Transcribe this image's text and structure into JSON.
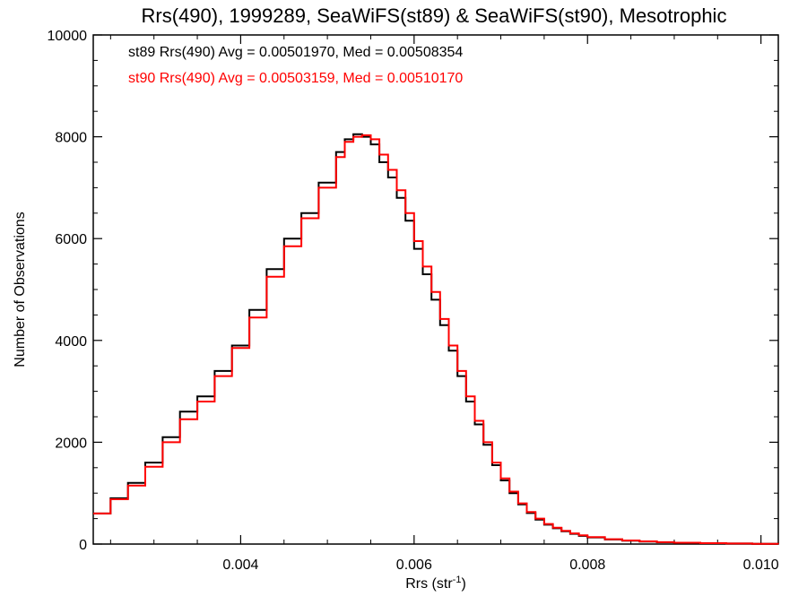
{
  "chart_data": {
    "type": "line",
    "style": "step-histogram",
    "title": "Rrs(490), 1999289, SeaWiFS(st89) & SeaWiFS(st90), Mesotrophic",
    "xlabel_main": "Rrs (str",
    "xlabel_sup": "-1",
    "xlabel_close": ")",
    "ylabel": "Number of Observations",
    "xlim": [
      0.0023,
      0.0102
    ],
    "ylim": [
      0,
      10000
    ],
    "grid": false,
    "x_ticks": [
      {
        "value": 0.004,
        "label": "0.004"
      },
      {
        "value": 0.006,
        "label": "0.006"
      },
      {
        "value": 0.008,
        "label": "0.008"
      },
      {
        "value": 0.01,
        "label": "0.010"
      }
    ],
    "y_ticks": [
      {
        "value": 0,
        "label": "0"
      },
      {
        "value": 2000,
        "label": "2000"
      },
      {
        "value": 4000,
        "label": "4000"
      },
      {
        "value": 6000,
        "label": "6000"
      },
      {
        "value": 8000,
        "label": "8000"
      },
      {
        "value": 10000,
        "label": "10000"
      }
    ],
    "annotations": [
      {
        "text": "st89 Rrs(490) Avg = 0.00501970, Med = 0.00508354",
        "color": "#000000"
      },
      {
        "text": "st90 Rrs(490) Avg = 0.00503159, Med = 0.00510170",
        "color": "#ff0000"
      }
    ],
    "series": [
      {
        "color": "#000000",
        "x": [
          0.0023,
          0.0025,
          0.0027,
          0.0029,
          0.0031,
          0.0033,
          0.0035,
          0.0037,
          0.0039,
          0.0041,
          0.0043,
          0.0045,
          0.0047,
          0.0049,
          0.0051,
          0.0052,
          0.0053,
          0.0054,
          0.0055,
          0.0056,
          0.0057,
          0.0058,
          0.0059,
          0.006,
          0.0061,
          0.0062,
          0.0063,
          0.0064,
          0.0065,
          0.0066,
          0.0067,
          0.0068,
          0.0069,
          0.007,
          0.0071,
          0.0072,
          0.0073,
          0.0074,
          0.0075,
          0.0076,
          0.0077,
          0.0078,
          0.0079,
          0.008,
          0.0082,
          0.0084,
          0.0086,
          0.0088,
          0.009,
          0.0093,
          0.0096,
          0.0099,
          0.0102
        ],
        "y": [
          600,
          900,
          1200,
          1600,
          2100,
          2600,
          2900,
          3400,
          3900,
          4600,
          5400,
          6000,
          6500,
          7100,
          7700,
          7950,
          8050,
          8000,
          7850,
          7500,
          7200,
          6800,
          6350,
          5800,
          5300,
          4800,
          4300,
          3800,
          3300,
          2800,
          2350,
          1950,
          1550,
          1250,
          1000,
          780,
          610,
          480,
          380,
          310,
          250,
          200,
          160,
          130,
          90,
          65,
          50,
          35,
          25,
          15,
          10,
          5,
          3
        ]
      },
      {
        "color": "#ff0000",
        "x": [
          0.0023,
          0.0025,
          0.0027,
          0.0029,
          0.0031,
          0.0033,
          0.0035,
          0.0037,
          0.0039,
          0.0041,
          0.0043,
          0.0045,
          0.0047,
          0.0049,
          0.0051,
          0.0052,
          0.0053,
          0.0054,
          0.0055,
          0.0056,
          0.0057,
          0.0058,
          0.0059,
          0.006,
          0.0061,
          0.0062,
          0.0063,
          0.0064,
          0.0065,
          0.0066,
          0.0067,
          0.0068,
          0.0069,
          0.007,
          0.0071,
          0.0072,
          0.0073,
          0.0074,
          0.0075,
          0.0076,
          0.0077,
          0.0078,
          0.0079,
          0.008,
          0.0082,
          0.0084,
          0.0086,
          0.0088,
          0.009,
          0.0093,
          0.0096,
          0.0099,
          0.0102
        ],
        "y": [
          600,
          880,
          1150,
          1520,
          2000,
          2450,
          2800,
          3300,
          3850,
          4450,
          5250,
          5850,
          6400,
          7000,
          7600,
          7900,
          8000,
          8030,
          7950,
          7650,
          7350,
          6950,
          6500,
          5950,
          5450,
          4950,
          4420,
          3900,
          3400,
          2900,
          2420,
          2000,
          1600,
          1290,
          1030,
          800,
          630,
          500,
          395,
          320,
          260,
          210,
          170,
          135,
          95,
          70,
          52,
          37,
          27,
          17,
          11,
          6,
          3
        ]
      }
    ]
  }
}
